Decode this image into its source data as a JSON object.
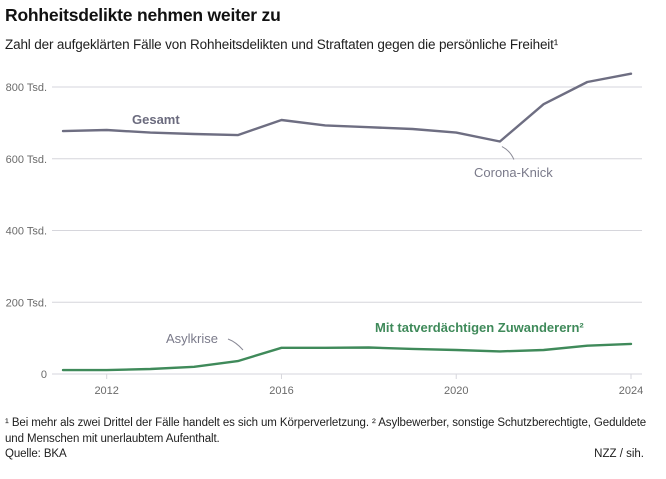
{
  "header": {
    "title": "Rohheitsdelikte nehmen weiter zu",
    "subtitle": "Zahl der aufgeklärten Fälle von Rohheitsdelikten und Straftaten gegen die persönliche Freiheit¹"
  },
  "footer": {
    "footnote": "¹ Bei mehr als zwei Drittel der Fälle handelt es sich um Körperverletzung. ² Asylbewerber, sonstige Schutzberechtigte, Geduldete und Menschen mit unerlaubtem Aufenthalt.",
    "source": "Quelle: BKA",
    "credit": "NZZ / sih."
  },
  "chart_data": {
    "type": "line",
    "title": "Rohheitsdelikte nehmen weiter zu",
    "subtitle": "Zahl der aufgeklärten Fälle von Rohheitsdelikten und Straftaten gegen die persönliche Freiheit¹",
    "xlabel": "",
    "ylabel": "",
    "x": [
      2011,
      2012,
      2013,
      2014,
      2015,
      2016,
      2017,
      2018,
      2019,
      2020,
      2021,
      2022,
      2023,
      2024
    ],
    "xlim": [
      2010.6,
      2024.3
    ],
    "ylim": [
      0,
      850
    ],
    "unit": "Tsd.",
    "grid": true,
    "legend": "inline labels",
    "yticks": [
      {
        "value": 0,
        "label": "0"
      },
      {
        "value": 200,
        "label": "200 Tsd."
      },
      {
        "value": 400,
        "label": "400 Tsd."
      },
      {
        "value": 600,
        "label": "600 Tsd."
      },
      {
        "value": 800,
        "label": "800 Tsd."
      }
    ],
    "xticks": [
      {
        "value": 2012,
        "label": "2012"
      },
      {
        "value": 2016,
        "label": "2016"
      },
      {
        "value": 2020,
        "label": "2020"
      },
      {
        "value": 2024,
        "label": "2024"
      }
    ],
    "series": [
      {
        "name": "Gesamt",
        "color": "#6e6e82",
        "values": [
          677,
          680,
          673,
          669,
          666,
          708,
          693,
          688,
          683,
          673,
          648,
          752,
          814,
          837
        ]
      },
      {
        "name": "Mit tatverdächtigen Zuwanderern²",
        "color": "#3f8a5a",
        "values": [
          11,
          11,
          14,
          20,
          36,
          73,
          73,
          74,
          70,
          67,
          63,
          67,
          79,
          84
        ]
      }
    ],
    "annotations": [
      {
        "text": "Corona-Knick",
        "x": 2021,
        "series": "Gesamt"
      },
      {
        "text": "Asylkrise",
        "x": 2015,
        "series": "Mit tatverdächtigen Zuwanderern²"
      }
    ],
    "colors": {
      "grid": "#d6d6dc",
      "tick_text": "#6b6b6b",
      "annotation": "#7a7a8a"
    }
  }
}
